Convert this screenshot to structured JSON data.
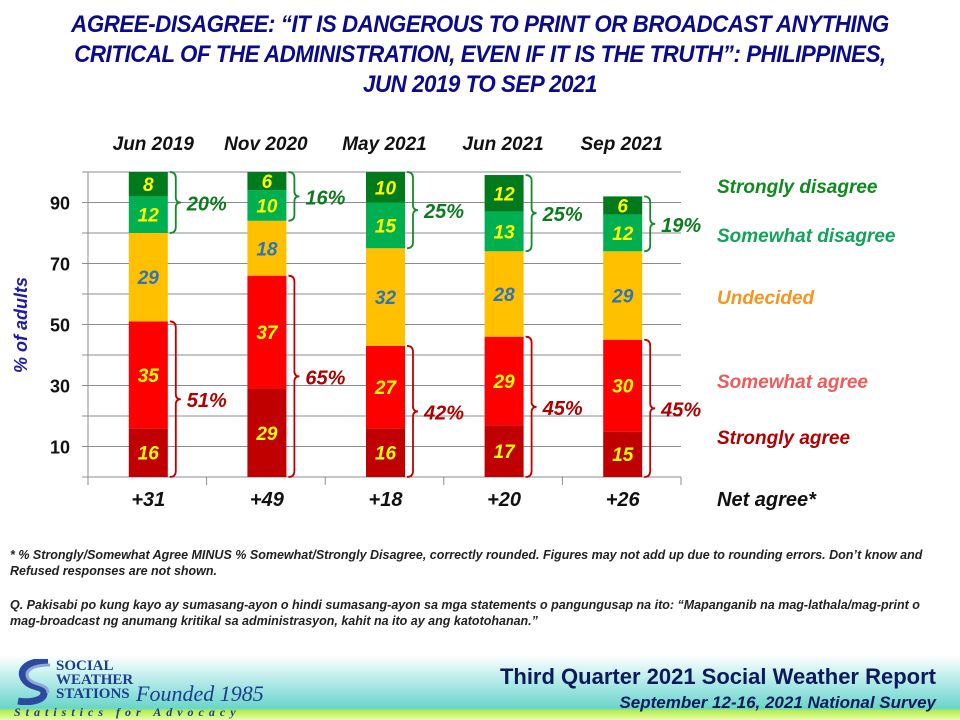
{
  "title": "AGREE-DISAGREE: “IT IS DANGEROUS TO PRINT OR BROADCAST ANYTHING CRITICAL OF THE ADMINISTRATION, EVEN IF IT IS THE TRUTH”: PHILIPPINES, JUN 2019 TO SEP 2021",
  "chart_data": {
    "type": "bar",
    "stacked": true,
    "categories": [
      "Jun 2019",
      "Nov 2020",
      "May 2021",
      "Jun 2021",
      "Sep 2021"
    ],
    "series": [
      {
        "name": "Strongly agree",
        "color": "#C00000",
        "label_color": "#FFFF00",
        "values": [
          16,
          29,
          16,
          17,
          15
        ]
      },
      {
        "name": "Somewhat agree",
        "color": "#FF0000",
        "label_color": "#FFFF00",
        "values": [
          35,
          37,
          27,
          29,
          30
        ]
      },
      {
        "name": "Undecided",
        "color": "#FFC000",
        "label_color": "#2E75B6",
        "values": [
          29,
          18,
          32,
          28,
          29
        ]
      },
      {
        "name": "Somewhat disagree",
        "color": "#00B050",
        "label_color": "#FFFF00",
        "values": [
          12,
          10,
          15,
          13,
          12
        ]
      },
      {
        "name": "Strongly disagree",
        "color": "#007A1C",
        "label_color": "#FFFF00",
        "values": [
          8,
          6,
          10,
          12,
          6
        ]
      }
    ],
    "legend": [
      {
        "label": "Strongly disagree",
        "color": "#0E8A1E"
      },
      {
        "label": "Somewhat disagree",
        "color": "#12A35A"
      },
      {
        "label": "Undecided",
        "color": "#F7941D"
      },
      {
        "label": "Somewhat agree",
        "color": "#F05A5A"
      },
      {
        "label": "Strongly agree",
        "color": "#B00000"
      }
    ],
    "legend_position": "right",
    "total_agree": [
      "51%",
      "65%",
      "42%",
      "45%",
      "45%"
    ],
    "total_disagree": [
      "20%",
      "16%",
      "25%",
      "25%",
      "19%"
    ],
    "net_agree": [
      "+31",
      "+49",
      "+18",
      "+20",
      "+26"
    ],
    "net_agree_label": "Net agree*",
    "ylabel": "% of adults",
    "xlabel": "",
    "ylim": [
      0,
      100
    ],
    "yticks": [
      10,
      30,
      50,
      70,
      90
    ],
    "grid": true
  },
  "notes": {
    "footnote": "* % Strongly/Somewhat Agree MINUS % Somewhat/Strongly Disagree, correctly rounded. Figures may not add up due to rounding errors. Don’t know and Refused responses are not shown.",
    "question": "Q. Pakisabi po kung kayo ay sumasang-ayon o hindi sumasang-ayon sa mga statements o pangungusap  na ito: “Mapanganib na mag-lathala/mag-print  o mag-broadcast  ng anumang kritikal sa administrasyon, kahit na ito ay ang katotohanan.”"
  },
  "footer": {
    "logo_lines": [
      "SOCIAL",
      "WEATHER",
      "STATIONS"
    ],
    "founded": "Founded 1985",
    "tagline": "Statistics for Advocacy",
    "report_title": "Third Quarter 2021 Social Weather Report",
    "report_subtitle": "September 12-16, 2021 National Survey"
  }
}
